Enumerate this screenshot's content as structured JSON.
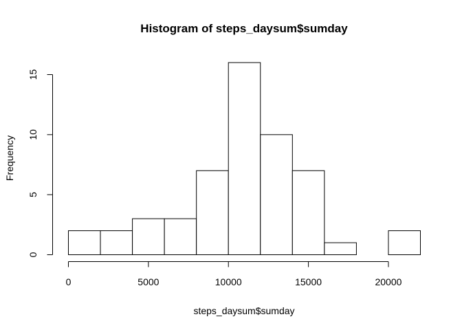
{
  "chart_data": {
    "type": "bar",
    "title": "Histogram of steps_daysum$sumday",
    "xlabel": "steps_daysum$sumday",
    "ylabel": "Frequency",
    "bins": [
      {
        "start": 0,
        "end": 2000,
        "count": 2
      },
      {
        "start": 2000,
        "end": 4000,
        "count": 2
      },
      {
        "start": 4000,
        "end": 6000,
        "count": 3
      },
      {
        "start": 6000,
        "end": 8000,
        "count": 3
      },
      {
        "start": 8000,
        "end": 10000,
        "count": 7
      },
      {
        "start": 10000,
        "end": 12000,
        "count": 16
      },
      {
        "start": 12000,
        "end": 14000,
        "count": 10
      },
      {
        "start": 14000,
        "end": 16000,
        "count": 7
      },
      {
        "start": 16000,
        "end": 18000,
        "count": 1
      },
      {
        "start": 18000,
        "end": 20000,
        "count": 0
      },
      {
        "start": 20000,
        "end": 22000,
        "count": 2
      }
    ],
    "x_ticks": [
      0,
      5000,
      10000,
      15000,
      20000
    ],
    "x_tick_labels": [
      "0",
      "5000",
      "10000",
      "15000",
      "20000"
    ],
    "y_ticks": [
      0,
      5,
      10,
      15
    ],
    "y_tick_labels": [
      "0",
      "5",
      "10",
      "15"
    ],
    "xlim": [
      0,
      22000
    ],
    "ylim": [
      0,
      16
    ],
    "grid": false,
    "legend": "none",
    "bar_fill": "#ffffff",
    "bar_stroke": "#000000"
  }
}
